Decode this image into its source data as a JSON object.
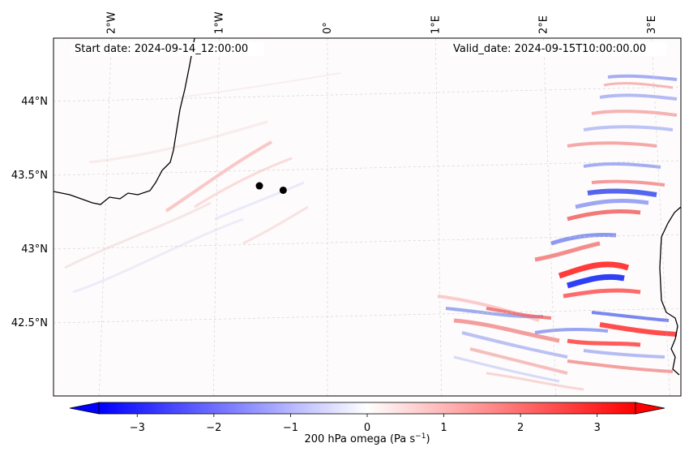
{
  "map": {
    "start_label": "Start date: 2024-09-14_12:00:00",
    "valid_label": "Valid_date: 2024-09-15T10:00:00.00",
    "lon_ticks": [
      {
        "lon": -2,
        "label": "2°W"
      },
      {
        "lon": -1,
        "label": "1°W"
      },
      {
        "lon": 0,
        "label": "0°"
      },
      {
        "lon": 1,
        "label": "1°E"
      },
      {
        "lon": 2,
        "label": "2°E"
      },
      {
        "lon": 3,
        "label": "3°E"
      }
    ],
    "lat_ticks": [
      {
        "lat": 44.0,
        "label": "44°N"
      },
      {
        "lat": 43.5,
        "label": "43.5°N"
      },
      {
        "lat": 43.0,
        "label": "43°N"
      },
      {
        "lat": 42.5,
        "label": "42.5°N"
      }
    ],
    "markers": [
      {
        "name": "point-1",
        "lon": -0.63,
        "lat": 43.39
      },
      {
        "name": "point-2",
        "lon": -0.41,
        "lat": 43.36
      }
    ]
  },
  "colorbar": {
    "ticks": [
      "−3",
      "−2",
      "−1",
      "0",
      "1",
      "2",
      "3"
    ],
    "tick_values": [
      -3,
      -2,
      -1,
      0,
      1,
      2,
      3
    ],
    "range": [
      -3.5,
      3.5
    ],
    "label_main": "200 hPa omega (Pa s",
    "label_exp": "−1",
    "label_end": ")",
    "colors": {
      "low": "#0000ff",
      "mid": "#ffffff",
      "high": "#ff0000"
    }
  }
}
